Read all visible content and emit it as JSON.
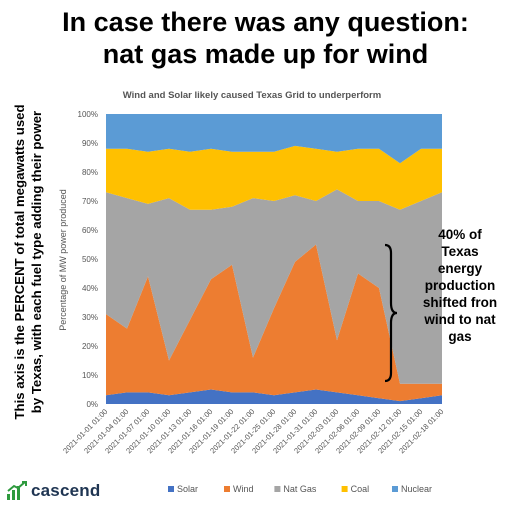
{
  "headline": {
    "line1": "In case there was any question:",
    "line2": "nat gas made up for wind"
  },
  "side_note": {
    "line1": "This axis is the PERCENT of total megawatts used",
    "line2": "by Texas, with each fuel type adding their power"
  },
  "annotation": {
    "lines": [
      "40% of",
      "Texas",
      "energy",
      "production",
      "shifted fron",
      "wind to nat",
      "gas"
    ]
  },
  "logo": {
    "name": "cascend",
    "icon": "cascend-logo-icon",
    "color": "#2e9a3e"
  },
  "chart_data": {
    "type": "area",
    "stacked": true,
    "title": "Wind and Solar likely caused Texas Grid to underperform",
    "ylabel": "Percentage of MW power produced",
    "xlabel": "",
    "ylim": [
      0,
      100
    ],
    "y_ticks": [
      "0%",
      "10%",
      "20%",
      "30%",
      "40%",
      "50%",
      "60%",
      "70%",
      "80%",
      "90%",
      "100%"
    ],
    "x": [
      "2021-01-01 01:00",
      "2021-01-04 01:00",
      "2021-01-07 01:00",
      "2021-01-10 01:00",
      "2021-01-13 01:00",
      "2021-01-16 01:00",
      "2021-01-19 01:00",
      "2021-01-22 01:00",
      "2021-01-25 01:00",
      "2021-01-28 01:00",
      "2021-01-31 01:00",
      "2021-02-03 01:00",
      "2021-02-06 01:00",
      "2021-02-09 01:00",
      "2021-02-12 01:00",
      "2021-02-15 01:00",
      "2021-02-18 01:00"
    ],
    "series": [
      {
        "name": "Solar",
        "color": "#4472c4",
        "values": [
          3,
          4,
          4,
          3,
          4,
          5,
          4,
          4,
          3,
          4,
          5,
          4,
          3,
          2,
          1,
          2,
          3
        ]
      },
      {
        "name": "Wind",
        "color": "#ed7d31",
        "values": [
          28,
          22,
          40,
          12,
          25,
          38,
          44,
          12,
          30,
          45,
          50,
          18,
          42,
          38,
          6,
          5,
          4
        ]
      },
      {
        "name": "Nat Gas",
        "color": "#a5a5a5",
        "values": [
          42,
          45,
          25,
          56,
          38,
          24,
          20,
          55,
          37,
          23,
          15,
          52,
          25,
          30,
          60,
          63,
          66
        ]
      },
      {
        "name": "Coal",
        "color": "#ffc000",
        "values": [
          15,
          17,
          18,
          17,
          20,
          21,
          19,
          16,
          17,
          17,
          18,
          13,
          18,
          18,
          16,
          18,
          15
        ]
      },
      {
        "name": "Nuclear",
        "color": "#5b9bd5",
        "values": [
          12,
          12,
          13,
          12,
          13,
          12,
          13,
          13,
          13,
          11,
          12,
          13,
          12,
          12,
          17,
          12,
          12
        ]
      }
    ],
    "legend_position": "bottom",
    "grid": false
  }
}
